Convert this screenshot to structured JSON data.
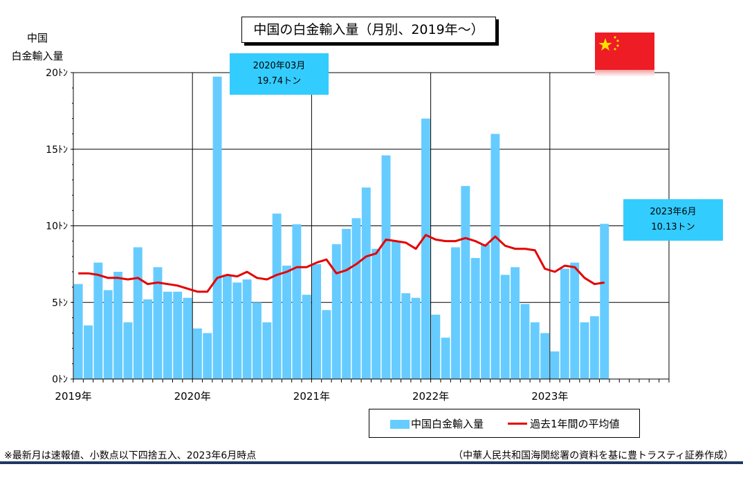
{
  "title": "中国の白金輸入量（月別、2019年～）",
  "y_axis_label_line1": "中国",
  "y_axis_label_line2": "白金輸入量",
  "callouts": [
    {
      "line1": "2020年03月",
      "line2": "19.74トン"
    },
    {
      "line1": "2023年6月",
      "line2": "10.13トン"
    }
  ],
  "legend": {
    "bar": "中国白金輸入量",
    "line": "過去1年間の平均値"
  },
  "footnote": "※最新月は速報値、小数点以下四捨五入、2023年6月時点",
  "source": "（中華人民共和国海関総署の資料を基に豊トラスティ証券作成）",
  "colors": {
    "bar": "#66ccff",
    "line": "#e60000",
    "callout": "#33ccff",
    "rule": "#1f3864",
    "flag": "#ee1c25",
    "star": "#ffde00"
  },
  "flag_icon": "china-flag-icon",
  "chart_data": {
    "type": "bar",
    "y_ticks": [
      "0ﾄﾝ",
      "5ﾄﾝ",
      "10ﾄﾝ",
      "15ﾄﾝ",
      "20ﾄﾝ"
    ],
    "ylim": [
      0,
      20
    ],
    "x_ticks": [
      "2019年",
      "2020年",
      "2021年",
      "2022年",
      "2023年"
    ],
    "grid": true,
    "months_total": 60,
    "series": [
      {
        "name": "中国白金輸入量",
        "type": "bar",
        "values": [
          6.2,
          3.5,
          7.6,
          5.8,
          7.0,
          3.7,
          8.6,
          5.2,
          7.3,
          5.7,
          5.7,
          5.3,
          3.3,
          3.0,
          19.74,
          6.8,
          6.3,
          6.5,
          5.0,
          3.7,
          10.8,
          7.4,
          10.1,
          5.5,
          7.5,
          4.5,
          8.8,
          9.8,
          10.5,
          12.5,
          8.5,
          14.6,
          9.0,
          5.6,
          5.3,
          17.0,
          4.2,
          2.7,
          8.6,
          12.6,
          7.9,
          8.8,
          16.0,
          6.8,
          7.3,
          4.9,
          3.7,
          3.0,
          1.8,
          7.2,
          7.6,
          3.7,
          4.1,
          10.13
        ]
      },
      {
        "name": "過去1年間の平均値",
        "type": "line",
        "values": [
          6.9,
          6.9,
          6.8,
          6.6,
          6.6,
          6.5,
          6.6,
          6.2,
          6.3,
          6.2,
          6.1,
          5.9,
          5.7,
          5.7,
          6.6,
          6.8,
          6.7,
          7.0,
          6.6,
          6.5,
          6.8,
          7.0,
          7.3,
          7.3,
          7.6,
          7.8,
          6.9,
          7.1,
          7.5,
          8.0,
          8.2,
          9.1,
          9.0,
          8.9,
          8.5,
          9.4,
          9.1,
          9.0,
          9.0,
          9.2,
          9.0,
          8.7,
          9.3,
          8.7,
          8.5,
          8.5,
          8.4,
          7.2,
          7.0,
          7.4,
          7.3,
          6.6,
          6.2,
          6.3
        ]
      }
    ]
  }
}
